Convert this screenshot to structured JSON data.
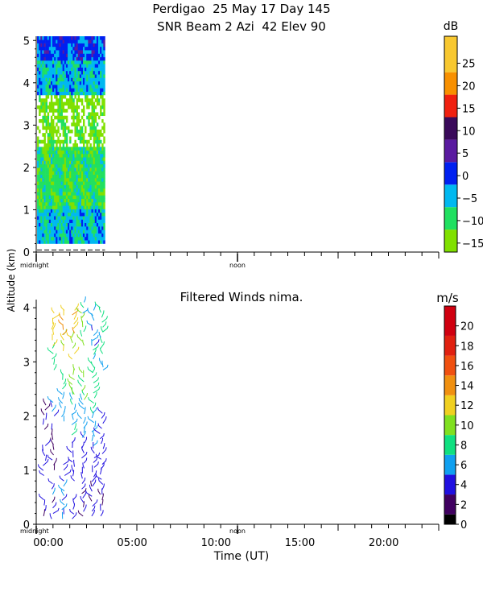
{
  "header": {
    "line1": "Perdigao  25 May 17 Day 145",
    "line2": "SNR Beam 2 Azi  42 Elev 90"
  },
  "shared_ylabel": "Altitude (km)",
  "chart_data": [
    {
      "type": "heatmap",
      "name": "SNR",
      "xlim_hours": [
        0,
        24
      ],
      "ylim": [
        0,
        5.1
      ],
      "yticks": [
        0,
        1,
        2,
        3,
        4,
        5
      ],
      "xtick_marks": [
        "midnight",
        "noon"
      ],
      "colorbar": {
        "unit": "dB",
        "ticks": [
          -15,
          -10,
          -5,
          0,
          5,
          10,
          15,
          20,
          25
        ],
        "bands": [
          {
            "from": -17,
            "to": -12,
            "color": "#80e000"
          },
          {
            "from": -12,
            "to": -7,
            "color": "#20e060"
          },
          {
            "from": -7,
            "to": -2,
            "color": "#00b8f0"
          },
          {
            "from": -2,
            "to": 3,
            "color": "#0020f0"
          },
          {
            "from": 3,
            "to": 8,
            "color": "#5a1aa0"
          },
          {
            "from": 8,
            "to": 13,
            "color": "#3a0a5a"
          },
          {
            "from": 13,
            "to": 18,
            "color": "#f02010"
          },
          {
            "from": 18,
            "to": 23,
            "color": "#f89000"
          },
          {
            "from": 23,
            "to": 31,
            "color": "#f8c830"
          }
        ]
      },
      "data_extent": {
        "x_hours": [
          0.05,
          4.1
        ],
        "y_km": [
          0.2,
          5.1
        ]
      },
      "approx_profile": [
        {
          "y_range": [
            0.2,
            1.0
          ],
          "dominant_db": -5
        },
        {
          "y_range": [
            1.0,
            2.5
          ],
          "dominant_db": -10
        },
        {
          "y_range": [
            2.5,
            3.7
          ],
          "dominant_db": -15
        },
        {
          "y_range": [
            3.7,
            4.5
          ],
          "dominant_db": -5
        },
        {
          "y_range": [
            4.5,
            5.1
          ],
          "dominant_db": 0
        }
      ]
    },
    {
      "type": "scatter",
      "name": "wind_barbs",
      "title": "Filtered Winds nima.",
      "xlabel": "Time (UT)",
      "xlim_hours": [
        0,
        24
      ],
      "ylim": [
        0,
        4.15
      ],
      "yticks": [
        0,
        1,
        2,
        3,
        4
      ],
      "xticks": [
        {
          "h": 0,
          "label": "00:00"
        },
        {
          "h": 5,
          "label": "05:00"
        },
        {
          "h": 10,
          "label": "10:00"
        },
        {
          "h": 15,
          "label": "15:00"
        },
        {
          "h": 20,
          "label": "20:00"
        }
      ],
      "xtick_marks": [
        "midnight",
        "noon"
      ],
      "colorbar": {
        "unit": "m/s",
        "ticks": [
          0,
          2,
          4,
          6,
          8,
          10,
          12,
          14,
          16,
          18,
          20
        ],
        "bands": [
          {
            "from": 0,
            "to": 1,
            "color": "#000000"
          },
          {
            "from": 1,
            "to": 3,
            "color": "#400060"
          },
          {
            "from": 3,
            "to": 5,
            "color": "#2010e0"
          },
          {
            "from": 5,
            "to": 7,
            "color": "#10a0f0"
          },
          {
            "from": 7,
            "to": 9,
            "color": "#10e080"
          },
          {
            "from": 9,
            "to": 11,
            "color": "#80e020"
          },
          {
            "from": 11,
            "to": 13,
            "color": "#f0d020"
          },
          {
            "from": 13,
            "to": 15,
            "color": "#f09010"
          },
          {
            "from": 15,
            "to": 17,
            "color": "#f05010"
          },
          {
            "from": 17,
            "to": 19,
            "color": "#e02010"
          },
          {
            "from": 19,
            "to": 22,
            "color": "#d00010"
          }
        ]
      },
      "columns": [
        {
          "h": 0.5,
          "segments": [
            {
              "y": [
                0.15,
                0.45
              ],
              "speed": 3
            },
            {
              "y": [
                0.9,
                1.45
              ],
              "speed": 4
            },
            {
              "y": [
                1.75,
                2.2
              ],
              "speed": 3
            }
          ]
        },
        {
          "h": 1.0,
          "segments": [
            {
              "y": [
                0.1,
                0.4
              ],
              "speed": 3
            },
            {
              "y": [
                0.55,
                0.75
              ],
              "speed": 5
            },
            {
              "y": [
                1.0,
                1.75
              ],
              "speed": 3
            },
            {
              "y": [
                2.0,
                2.25
              ],
              "speed": 5
            },
            {
              "y": [
                2.85,
                3.25
              ],
              "speed": 8
            },
            {
              "y": [
                3.3,
                3.6
              ],
              "speed": 11
            },
            {
              "y": [
                3.6,
                3.9
              ],
              "speed": 12
            }
          ]
        },
        {
          "h": 1.6,
          "segments": [
            {
              "y": [
                0.1,
                0.7
              ],
              "speed": 5
            },
            {
              "y": [
                0.8,
                1.1
              ],
              "speed": 4
            },
            {
              "y": [
                1.9,
                2.4
              ],
              "speed": 6
            },
            {
              "y": [
                2.5,
                2.75
              ],
              "speed": 8
            },
            {
              "y": [
                3.2,
                3.5
              ],
              "speed": 11
            },
            {
              "y": [
                3.5,
                3.95
              ],
              "speed": 13
            }
          ]
        },
        {
          "h": 2.2,
          "segments": [
            {
              "y": [
                0.1,
                0.45
              ],
              "speed": 4
            },
            {
              "y": [
                0.8,
                1.5
              ],
              "speed": 4
            },
            {
              "y": [
                1.65,
                2.4
              ],
              "speed": 7
            },
            {
              "y": [
                2.4,
                2.85
              ],
              "speed": 10
            },
            {
              "y": [
                3.05,
                3.45
              ],
              "speed": 11
            },
            {
              "y": [
                3.45,
                3.95
              ],
              "speed": 13
            }
          ]
        },
        {
          "h": 2.8,
          "segments": [
            {
              "y": [
                0.15,
                0.65
              ],
              "speed": 3
            },
            {
              "y": [
                0.75,
                1.6
              ],
              "speed": 4
            },
            {
              "y": [
                1.6,
                2.3
              ],
              "speed": 6
            },
            {
              "y": [
                2.3,
                2.8
              ],
              "speed": 9
            },
            {
              "y": [
                3.3,
                3.9
              ],
              "speed": 9
            },
            {
              "y": [
                3.9,
                4.1
              ],
              "speed": 7
            }
          ]
        },
        {
          "h": 3.4,
          "segments": [
            {
              "y": [
                0.15,
                0.7
              ],
              "speed": 3
            },
            {
              "y": [
                0.7,
                1.4
              ],
              "speed": 4
            },
            {
              "y": [
                1.45,
                2.05
              ],
              "speed": 6
            },
            {
              "y": [
                2.05,
                2.8
              ],
              "speed": 8
            },
            {
              "y": [
                2.8,
                3.3
              ],
              "speed": 7
            },
            {
              "y": [
                3.3,
                3.95
              ],
              "speed": 5
            }
          ]
        },
        {
          "h": 3.9,
          "segments": [
            {
              "y": [
                0.15,
                0.55
              ],
              "speed": 3
            },
            {
              "y": [
                0.55,
                1.2
              ],
              "speed": 4
            },
            {
              "y": [
                1.3,
                2.05
              ],
              "speed": 4
            },
            {
              "y": [
                2.85,
                2.95
              ],
              "speed": 7
            },
            {
              "y": [
                3.15,
                3.55
              ],
              "speed": 7
            },
            {
              "y": [
                3.55,
                4.0
              ],
              "speed": 8
            }
          ]
        }
      ]
    }
  ]
}
